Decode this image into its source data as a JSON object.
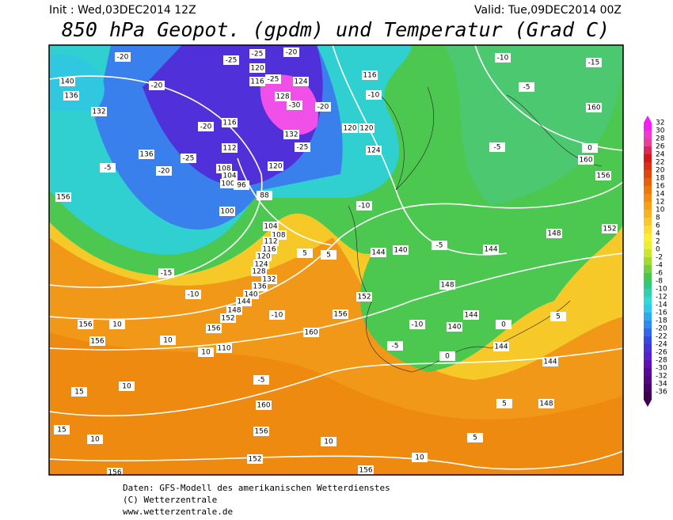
{
  "header": {
    "init": "Init : Wed,03DEC2014 12Z",
    "valid": "Valid: Tue,09DEC2014 00Z",
    "title": "850 hPa Geopot. (gpdm) und Temperatur (Grad C)"
  },
  "legend": {
    "levels": [
      32,
      30,
      28,
      26,
      24,
      22,
      20,
      18,
      16,
      14,
      12,
      10,
      8,
      6,
      4,
      2,
      0,
      -2,
      -4,
      -6,
      -8,
      -10,
      -12,
      -14,
      -16,
      -18,
      -20,
      -22,
      -24,
      -26,
      -28,
      -30,
      -32,
      -34,
      -36
    ],
    "colors": [
      "#f41ef4",
      "#ee3cc8",
      "#e8409a",
      "#dc2850",
      "#d01818",
      "#d83010",
      "#e04808",
      "#e86008",
      "#ee7808",
      "#f28c10",
      "#f6a018",
      "#f8b420",
      "#fac828",
      "#fcdc30",
      "#fcf030",
      "#e8f030",
      "#c8e830",
      "#a0dc30",
      "#70d040",
      "#40c850",
      "#30c880",
      "#30d0b0",
      "#30d8d8",
      "#30c8f0",
      "#30a8f0",
      "#3088f0",
      "#3068e8",
      "#3848e0",
      "#4830d8",
      "#5820c8",
      "#6010b0",
      "#580898",
      "#500880",
      "#480068",
      "#400050"
    ]
  },
  "map": {
    "labels": [
      "-20",
      "-25",
      "-20",
      "-25",
      "120",
      "116",
      "-25",
      "124",
      "-30",
      "128",
      "132",
      "-25",
      "140",
      "136",
      "-20",
      "132",
      "-20",
      "116",
      "112",
      "-25",
      "136",
      "-20",
      "108",
      "104",
      "100",
      "96",
      "88",
      "120",
      "-20",
      "116",
      "-10",
      "124",
      "120",
      "120",
      "-10",
      "-15",
      "-5",
      "160",
      "-5",
      "160",
      "156",
      "0",
      "-5",
      "156",
      "100",
      "104",
      "108",
      "112",
      "116",
      "120",
      "124",
      "128",
      "132",
      "136",
      "140",
      "144",
      "148",
      "152",
      "-15",
      "-10",
      "5",
      "5",
      "-10",
      "144",
      "140",
      "-5",
      "144",
      "148",
      "152",
      "156",
      "160",
      "-10",
      "144",
      "140",
      "-5",
      "-10",
      "0",
      "144",
      "0",
      "144",
      "148",
      "152",
      "156",
      "10",
      "156",
      "156",
      "10",
      "110",
      "15",
      "10",
      "-5",
      "160",
      "5",
      "148",
      "15",
      "10",
      "156",
      "152",
      "10",
      "5",
      "10",
      "156",
      "156",
      "10",
      "5"
    ]
  },
  "footer": [
    "Daten: GFS-Modell des amerikanischen Wetterdienstes",
    "(C) Wetterzentrale",
    "www.wetterzentrale.de"
  ]
}
